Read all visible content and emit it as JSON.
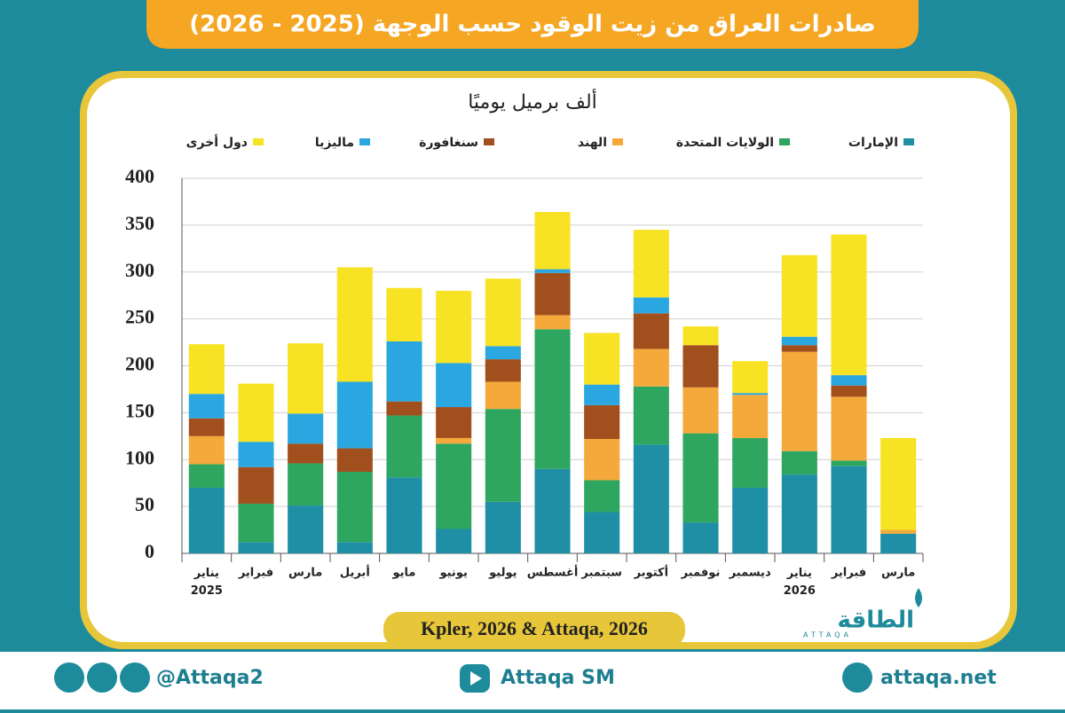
{
  "chart_data": {
    "type": "bar",
    "stacked": true,
    "title": "صادرات العراق من زيت الوقود حسب الوجهة (2025 - 2026)",
    "subtitle": "ألف برميل يوميًا",
    "categories": [
      "يناير\n2025",
      "فبراير",
      "مارس",
      "أبريل",
      "مايو",
      "يونيو",
      "يوليو",
      "أغسطس",
      "سبتمبر",
      "أكتوبر",
      "نوفمبر",
      "ديسمبر",
      "يناير\n2026",
      "فبراير",
      "مارس"
    ],
    "category_colors": [
      "#222222",
      "#222222",
      "#222222",
      "#222222",
      "#222222",
      "#222222",
      "#222222",
      "#222222",
      "#222222",
      "#222222",
      "#222222",
      "#222222",
      "#1d8ea3",
      "#1d8ea3",
      "#1d8ea3"
    ],
    "series": [
      {
        "name": "الإمارات",
        "color": "#1f8fa6",
        "values": [
          70,
          12,
          51,
          12,
          81,
          26,
          55,
          90,
          44,
          116,
          33,
          70,
          84,
          93,
          21
        ]
      },
      {
        "name": "الولايات المتحدة",
        "color": "#2ea660",
        "values": [
          25,
          41,
          45,
          75,
          66,
          91,
          99,
          149,
          34,
          62,
          95,
          53,
          25,
          6,
          0
        ]
      },
      {
        "name": "الهند",
        "color": "#f4a93a",
        "values": [
          30,
          0,
          0,
          0,
          0,
          6,
          29,
          15,
          44,
          40,
          49,
          46,
          106,
          68,
          4
        ]
      },
      {
        "name": "سنغافورة",
        "color": "#a24f1e",
        "values": [
          19,
          39,
          21,
          25,
          15,
          33,
          24,
          45,
          36,
          38,
          45,
          0,
          7,
          12,
          0
        ]
      },
      {
        "name": "ماليزيا",
        "color": "#2aa7e0",
        "values": [
          26,
          27,
          32,
          71,
          64,
          47,
          14,
          4,
          22,
          17,
          0,
          2,
          9,
          11,
          0
        ]
      },
      {
        "name": "دول أخرى",
        "color": "#f7e223",
        "values": [
          53,
          62,
          75,
          122,
          57,
          77,
          72,
          61,
          55,
          72,
          20,
          34,
          87,
          150,
          98
        ]
      }
    ],
    "ylim": [
      0,
      400
    ],
    "yticks": [
      0,
      50,
      100,
      150,
      200,
      250,
      300,
      350,
      400
    ],
    "grid": true,
    "source": "Kpler, 2026 & Attaqa, 2026"
  },
  "logo": {
    "name": "الطاقة",
    "latin": "ATTAQA"
  },
  "footer": {
    "social": "@Attaqa2",
    "youtube": "Attaqa SM",
    "website": "attaqa.net"
  }
}
